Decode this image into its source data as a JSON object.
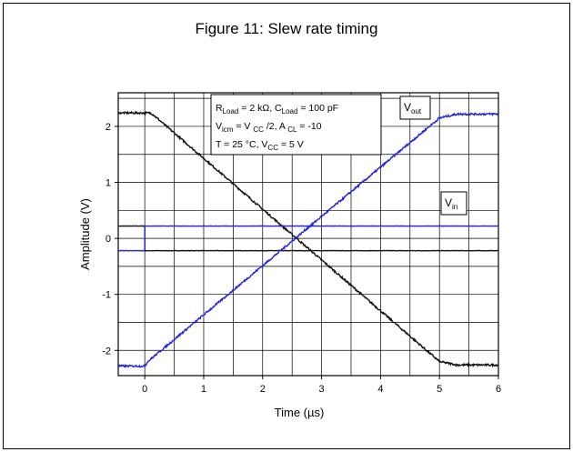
{
  "figure": {
    "title": "Figure 11: Slew rate timing"
  },
  "chart_data": {
    "type": "line",
    "xlabel": "Time (µs)",
    "ylabel": "Amplitude (V)",
    "xlim": [
      -0.45,
      6.0
    ],
    "ylim": [
      -2.45,
      2.6
    ],
    "xticks": [
      "0",
      "1",
      "2",
      "3",
      "4",
      "5",
      "6"
    ],
    "xtick_values": [
      0,
      1,
      2,
      3,
      4,
      5,
      6
    ],
    "yticks": [
      "-2",
      "-1",
      "0",
      "1",
      "2"
    ],
    "ytick_values": [
      -2,
      -1,
      0,
      1,
      2
    ],
    "grid": true,
    "conditions": {
      "line1": {
        "r": "R",
        "r_sub": "Load",
        "r_val": " = 2 kΩ, C",
        "c_sub": "Load",
        "c_val": " = 100 pF"
      },
      "line2": {
        "v": "V",
        "v_sub": "icm",
        "mid1": " = V ",
        "cc_sub": "CC",
        "mid2": " /2, A ",
        "a_sub": "CL",
        "end": " = -10"
      },
      "line3": {
        "t": "T = 25 °C, V",
        "cc_sub": "CC",
        "end": " = 5 V"
      }
    },
    "series": [
      {
        "name": "V_out",
        "label_main": "V",
        "label_sub": "out",
        "color": "#2222dd",
        "x": [
          -0.45,
          0.0,
          0.05,
          5.0,
          5.3,
          6.0
        ],
        "y": [
          -2.28,
          -2.28,
          -2.2,
          2.15,
          2.22,
          2.22
        ]
      },
      {
        "name": "V_in",
        "label_main": "V",
        "label_sub": "in",
        "color": "#2222dd",
        "x": [
          -0.45,
          0.0,
          0.0,
          6.0
        ],
        "y": [
          -0.22,
          -0.22,
          0.22,
          0.22
        ]
      },
      {
        "name": "V_out_black",
        "color": "#111111",
        "x": [
          -0.45,
          0.1,
          0.15,
          5.0,
          5.3,
          6.0
        ],
        "y": [
          2.24,
          2.24,
          2.2,
          -2.2,
          -2.26,
          -2.26
        ]
      },
      {
        "name": "V_in_black",
        "color": "#111111",
        "x": [
          -0.45,
          0.0,
          0.0,
          6.0
        ],
        "y": [
          0.22,
          0.22,
          -0.22,
          -0.22
        ]
      }
    ]
  }
}
